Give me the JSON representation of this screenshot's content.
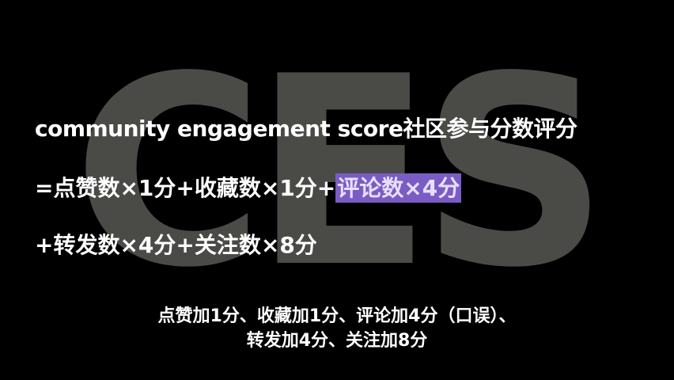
{
  "background": {
    "watermark_text": "CES",
    "watermark_color": "#4a4a47"
  },
  "formula": {
    "title": "community engagement score社区参与分数评分",
    "line2_plain": "=点赞数×1分+收藏数×1分+",
    "line2_highlight": "评论数×4分",
    "line3": "+转发数×4分+关注数×8分",
    "highlight_color": "#7a5cc4"
  },
  "subtitle": {
    "line1": "点赞加1分、收藏加1分、评论加4分（口误）、",
    "line2": "转发加4分、关注加8分"
  }
}
